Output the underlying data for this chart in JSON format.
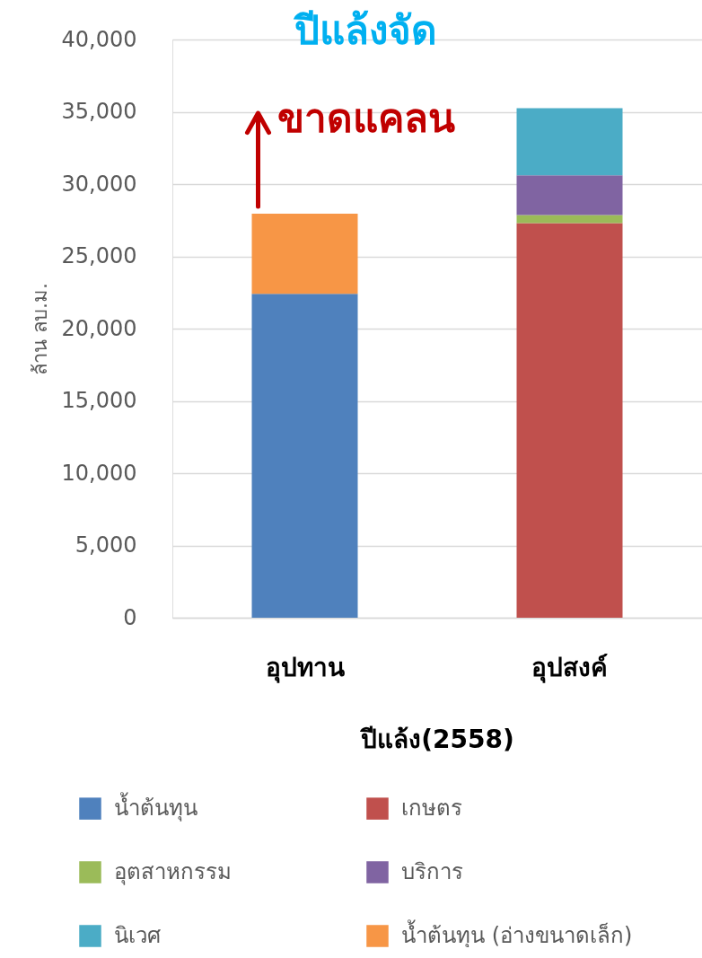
{
  "chart_data": {
    "type": "bar",
    "title": "ปีแล้งจัด",
    "xlabel": "ปีแล้ง(2558)",
    "ylabel": "ล้าน ลบ.ม.",
    "categories": [
      "อุปทาน",
      "อุปสงค์"
    ],
    "stacked": true,
    "series": [
      {
        "name": "น้ำต้นทุน",
        "color": "#4f81bd",
        "values": [
          22400,
          null
        ]
      },
      {
        "name": "เกษตร",
        "color": "#c0504d",
        "values": [
          null,
          27300
        ]
      },
      {
        "name": "อุตสาหกรรม",
        "color": "#9bbb59",
        "values": [
          null,
          550
        ]
      },
      {
        "name": "บริการ",
        "color": "#8064a2",
        "values": [
          null,
          2750
        ]
      },
      {
        "name": "นิเวศ",
        "color": "#4bacc6",
        "values": [
          null,
          4650
        ]
      },
      {
        "name": "น้ำต้นทุน (อ่างขนาดเล็ก)",
        "color": "#f79646",
        "values": [
          5550,
          null
        ]
      }
    ],
    "ylim": [
      0,
      40000
    ],
    "yticks": [
      0,
      {
        "value": 5000,
        "label": "5,000"
      },
      {
        "value": 10000,
        "label": "10,000"
      },
      {
        "value": 15000,
        "label": "15,000"
      },
      {
        "value": 20000,
        "label": "20,000"
      },
      {
        "value": 25000,
        "label": "25,000"
      },
      {
        "value": 30000,
        "label": "30,000"
      },
      {
        "value": 35000,
        "label": "35,000"
      },
      {
        "value": 40000,
        "label": "40,000"
      }
    ],
    "grid": "y",
    "legend": "bottom",
    "annotations": [
      "ขาดแคลน"
    ]
  }
}
